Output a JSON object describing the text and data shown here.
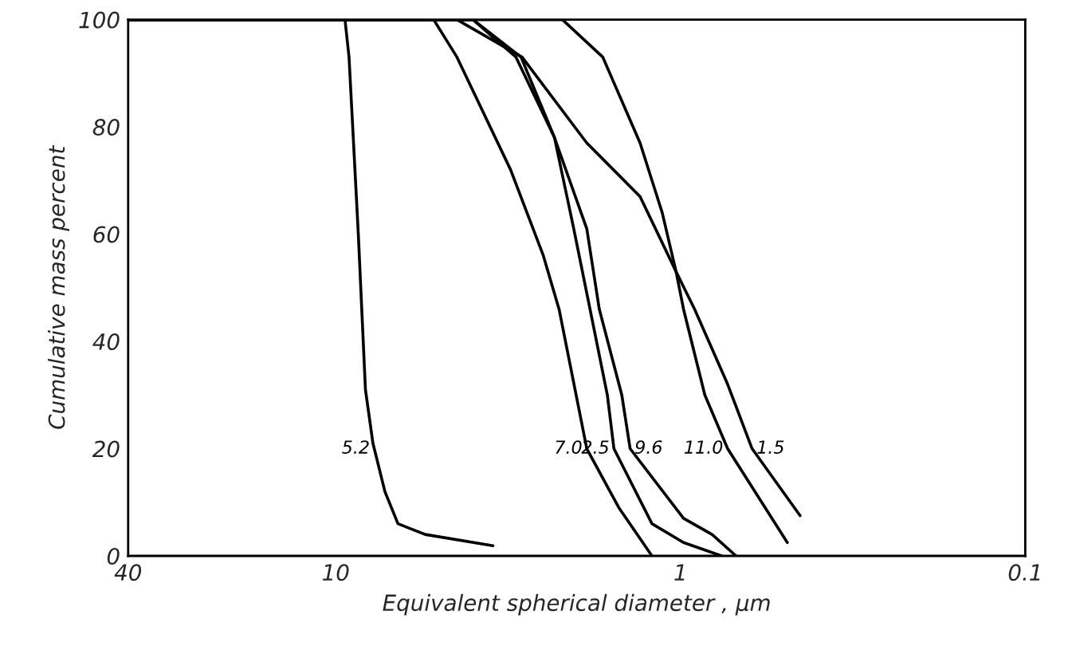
{
  "chart_data": {
    "type": "line",
    "xlabel": "Equivalent spherical diameter , μm",
    "ylabel": "Cumulative mass percent",
    "log": "x",
    "xlim": [
      40,
      0.1
    ],
    "xticks": [
      40,
      10,
      1,
      0.1
    ],
    "ylim": [
      0,
      100
    ],
    "yticks": [
      0,
      20,
      40,
      60,
      80,
      100
    ],
    "grid": false,
    "legend": false,
    "marker": "none",
    "line_style": "solid",
    "series": [
      {
        "name": "5.2",
        "color": "#000000",
        "x": [
          40,
          9.4,
          9.15,
          8.6,
          8.2,
          7.8,
          7.2,
          6.6,
          5.5,
          3.5
        ],
        "values": [
          100,
          100,
          93,
          60,
          31,
          21,
          12,
          6,
          4,
          1.9
        ]
      },
      {
        "name": "7.0",
        "color": "#000000",
        "x": [
          40,
          5.2,
          4.45,
          3.11,
          2.5,
          2.25,
          1.87,
          1.51,
          1.21
        ],
        "values": [
          100,
          100,
          93,
          72,
          56,
          46,
          20,
          9,
          0
        ]
      },
      {
        "name": "2.5",
        "color": "#000000",
        "x": [
          40,
          4.0,
          3.0,
          2.32,
          2.04,
          1.83,
          1.63,
          1.56,
          1.21,
          0.98,
          0.76
        ],
        "values": [
          100,
          100,
          93,
          78,
          61,
          46,
          30,
          20,
          6,
          2.5,
          0
        ]
      },
      {
        "name": "9.6",
        "color": "#000000",
        "x": [
          40,
          4.0,
          2.9,
          2.32,
          1.87,
          1.72,
          1.48,
          1.4,
          0.98,
          0.81,
          0.69
        ],
        "values": [
          100,
          100,
          93,
          78,
          61,
          46,
          30,
          20,
          7,
          4,
          0
        ]
      },
      {
        "name": "11.0",
        "color": "#000000",
        "x": [
          40,
          2.2,
          1.68,
          1.31,
          1.13,
          1.03,
          0.98,
          0.85,
          0.73,
          0.49
        ],
        "values": [
          100,
          100,
          93,
          77,
          64,
          53,
          46,
          30,
          20,
          2.5
        ]
      },
      {
        "name": "1.5",
        "color": "#000000",
        "x": [
          40,
          4.45,
          2.88,
          1.87,
          1.31,
          1.03,
          0.91,
          0.73,
          0.62,
          0.45
        ],
        "values": [
          100,
          100,
          93,
          77,
          67,
          53,
          46,
          32,
          20,
          7.5
        ]
      }
    ]
  }
}
